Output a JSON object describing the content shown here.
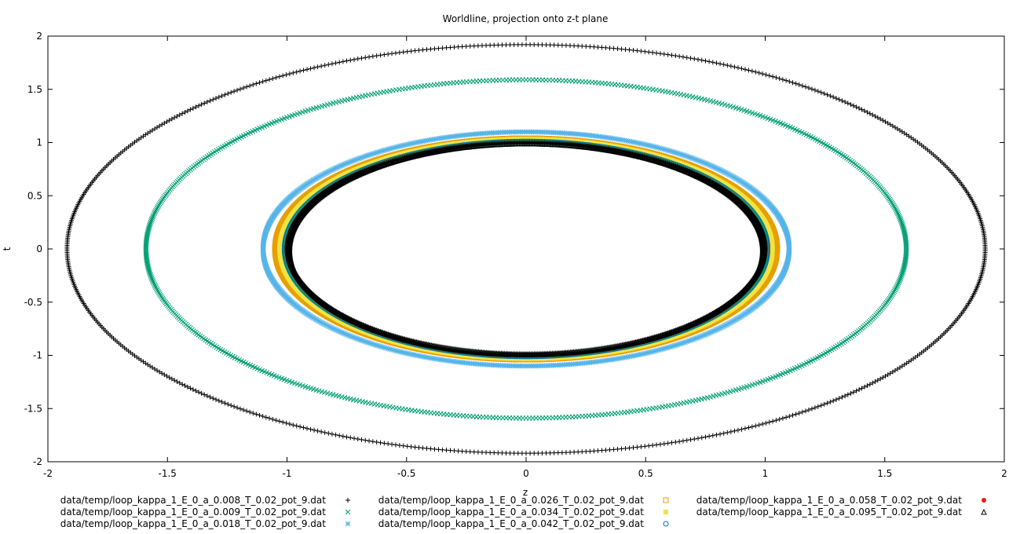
{
  "chart_data": {
    "type": "scatter",
    "title": "Worldline, projection onto z-t plane",
    "xlabel": "z",
    "ylabel": "t",
    "xlim": [
      -2,
      2
    ],
    "ylim": [
      -2,
      2
    ],
    "xticks": [
      "-2",
      "-1.5",
      "-1",
      "-0.5",
      "0",
      "0.5",
      "1",
      "1.5",
      "2"
    ],
    "yticks": [
      "-2",
      "-1.5",
      "-1",
      "-0.5",
      "0",
      "0.5",
      "1",
      "1.5",
      "2"
    ],
    "grid": false,
    "legend_position": "bottom",
    "series": [
      {
        "name": "data/temp/loop_kappa_1_E_0_a_0.008_T_0.02_pot_9.dat",
        "marker": "plus",
        "color": "#000000",
        "rz": 1.0,
        "rt": 1.0
      },
      {
        "name": "data/temp/loop_kappa_1_E_0_a_0.009_T_0.02_pot_9.dat",
        "marker": "cross",
        "color": "#009e73",
        "rz": 1.003,
        "rt": 1.003
      },
      {
        "name": "data/temp/loop_kappa_1_E_0_a_0.018_T_0.02_pot_9.dat",
        "marker": "star",
        "color": "#56b4e9",
        "rz": 1.1,
        "rt": 1.1
      },
      {
        "name": "data/temp/loop_kappa_1_E_0_a_0.026_T_0.02_pot_9.dat",
        "marker": "square",
        "color": "#e69f00",
        "rz": 1.05,
        "rt": 1.04
      },
      {
        "name": "data/temp/loop_kappa_1_E_0_a_0.034_T_0.02_pot_9.dat",
        "marker": "filled-square",
        "color": "#f0e442",
        "rz": 1.03,
        "rt": 1.03
      },
      {
        "name": "data/temp/loop_kappa_1_E_0_a_0.042_T_0.02_pot_9.dat",
        "marker": "circle",
        "color": "#0072b2",
        "rz": 1.01,
        "rt": 1.01
      },
      {
        "name": "data/temp/loop_kappa_1_E_0_a_0.058_T_0.02_pot_9.dat",
        "marker": "filled-circle",
        "color": "#e51e10",
        "rz": 1.005,
        "rt": 1.005
      },
      {
        "name": "data/temp/loop_kappa_1_E_0_a_0.095_T_0.02_pot_9.dat",
        "marker": "triangle",
        "color": "#000000",
        "rz": 0.99,
        "rt": 0.99
      }
    ],
    "extra_rings": [
      {
        "color": "#000000",
        "marker": "plus",
        "rz": 1.92,
        "rt": 1.92
      },
      {
        "color": "#009e73",
        "marker": "cross",
        "rz": 1.59,
        "rt": 1.59
      }
    ]
  }
}
